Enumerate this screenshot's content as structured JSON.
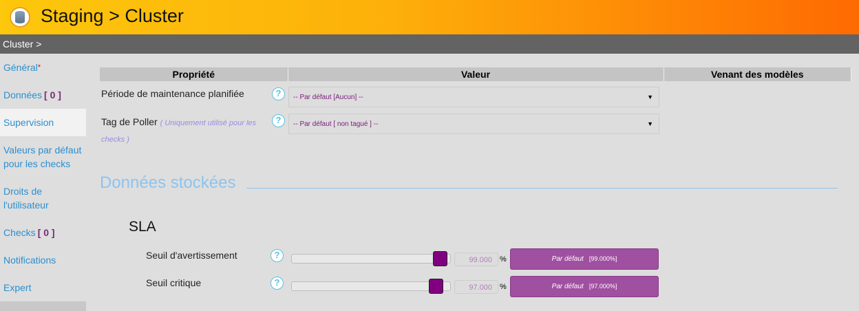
{
  "header": {
    "title": "Staging > Cluster",
    "icon": "database-icon"
  },
  "breadcrumb": "Cluster >",
  "sidebar": {
    "items": [
      {
        "label": "Général",
        "required": "*"
      },
      {
        "label": "Données",
        "count": "[ 0 ]"
      },
      {
        "label": "Supervision",
        "active": true
      },
      {
        "label": "Valeurs par défaut pour les checks"
      },
      {
        "label": "Droits de l'utilisateur"
      },
      {
        "label": "Checks",
        "count": "[ 0 ]"
      },
      {
        "label": "Notifications"
      },
      {
        "label": "Expert"
      }
    ]
  },
  "table": {
    "columns": [
      "Propriété",
      "Valeur",
      "Venant des modèles"
    ],
    "rows": [
      {
        "label": "Période de maintenance planifiée",
        "value": "-- Par défaut [Aucun] --"
      },
      {
        "label": "Tag de Poller",
        "note": "( Uniquement utilisé pour les checks )",
        "value": "-- Par défaut [ non tagué ] --"
      }
    ]
  },
  "section": {
    "title": "Données stockées",
    "subtitle": "SLA"
  },
  "sla": [
    {
      "label": "Seuil d'avertissement",
      "value": "99.000",
      "unit": "%",
      "default_label": "Par défaut",
      "default_value": "[99.000%]",
      "slider_percent": 99
    },
    {
      "label": "Seuil critique",
      "value": "97.000",
      "unit": "%",
      "default_label": "Par défaut",
      "default_value": "[97.000%]",
      "slider_percent": 97
    }
  ],
  "colors": {
    "accent": "#a050a0",
    "thumb": "#800080",
    "link": "#2a8fd0"
  }
}
